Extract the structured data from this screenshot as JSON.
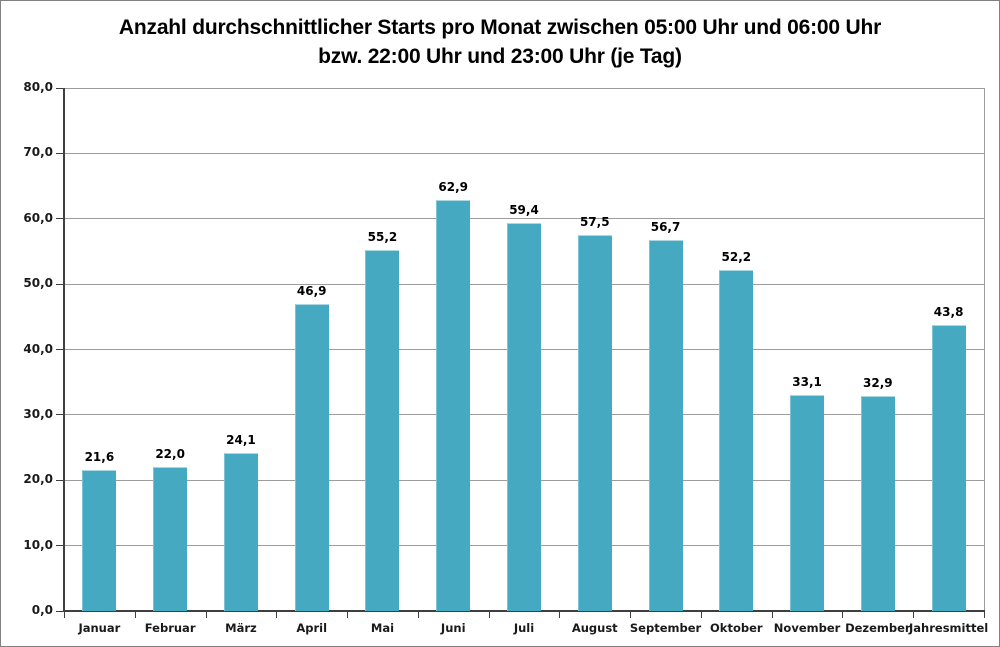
{
  "chart_data": {
    "type": "bar",
    "title_lines": [
      "Anzahl durchschnittlicher Starts pro Monat zwischen 05:00 Uhr und 06:00 Uhr",
      "bzw. 22:00 Uhr und 23:00 Uhr (je Tag)"
    ],
    "categories": [
      "Januar",
      "Februar",
      "März",
      "April",
      "Mai",
      "Juni",
      "Juli",
      "August",
      "September",
      "Oktober",
      "November",
      "Dezember",
      "Jahresmittel"
    ],
    "values": [
      21.6,
      22.0,
      24.1,
      46.9,
      55.2,
      62.9,
      59.4,
      57.5,
      56.7,
      52.2,
      33.1,
      32.9,
      43.8
    ],
    "value_labels": [
      "21,6",
      "22,0",
      "24,1",
      "46,9",
      "55,2",
      "62,9",
      "59,4",
      "57,5",
      "56,7",
      "52,2",
      "33,1",
      "32,9",
      "43,8"
    ],
    "xlabel": "",
    "ylabel": "",
    "ylim": [
      0,
      80
    ],
    "ytick_step": 10,
    "ytick_labels": [
      "0,0",
      "10,0",
      "20,0",
      "30,0",
      "40,0",
      "50,0",
      "60,0",
      "70,0",
      "80,0"
    ],
    "grid": true,
    "legend_position": "none",
    "colors": {
      "bar": "#46A9C2",
      "gridline": "#9C9C9C",
      "axis": "#3F3F3F",
      "chart_border": "#808080",
      "background": "#FFFFFF",
      "text": "#000000"
    }
  }
}
